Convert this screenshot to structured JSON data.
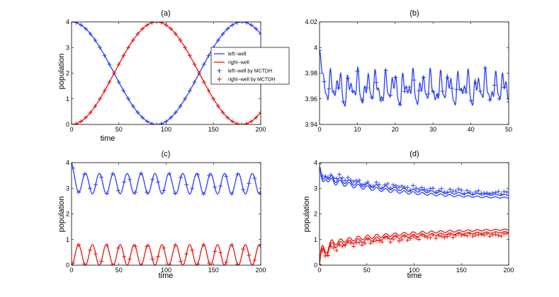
{
  "colors": {
    "left": "#2b3ff0",
    "right": "#e8140e"
  },
  "legend": {
    "labels": [
      "left−well",
      "right−well",
      "left−well by MCTDH",
      "right−well by MCTDH"
    ]
  },
  "chart_data": [
    {
      "id": "a",
      "type": "line",
      "title": "(a)",
      "xlabel": "time",
      "ylabel": "population",
      "xlim": [
        0,
        200
      ],
      "ylim": [
        0,
        4
      ],
      "xticks": [
        0,
        50,
        100,
        150,
        200
      ],
      "yticks": [
        0,
        1,
        2,
        3,
        4
      ],
      "xtick_labels": [
        "0",
        "50",
        "100",
        "150",
        "200"
      ],
      "ytick_labels": [
        "0",
        "1",
        "2",
        "3",
        "4"
      ],
      "series": [
        {
          "name": "left-well",
          "style": "line",
          "color_key": "left",
          "model": "rabi_left",
          "period": 180,
          "amp": 4
        },
        {
          "name": "right-well",
          "style": "line",
          "color_key": "right",
          "model": "rabi_right",
          "period": 180,
          "amp": 4
        },
        {
          "name": "left-well by MCTDH",
          "style": "marker",
          "color_key": "left",
          "model": "rabi_left",
          "period": 180,
          "amp": 4,
          "step": 5
        },
        {
          "name": "right-well by MCTDH",
          "style": "marker",
          "color_key": "right",
          "model": "rabi_right",
          "period": 180,
          "amp": 4,
          "step": 5
        }
      ]
    },
    {
      "id": "b",
      "type": "line",
      "title": "(b)",
      "xlabel": "",
      "ylabel": "",
      "xlim": [
        0,
        50
      ],
      "ylim": [
        3.94,
        4.02
      ],
      "xticks": [
        0,
        10,
        20,
        30,
        40,
        50
      ],
      "yticks": [
        3.94,
        3.96,
        3.98,
        4.0,
        4.02
      ],
      "xtick_labels": [
        "0",
        "10",
        "20",
        "30",
        "40",
        "50"
      ],
      "ytick_labels": [
        "3.94",
        "3.96",
        "3.98",
        "4",
        "4.02"
      ],
      "series": [
        {
          "name": "left-well",
          "style": "line",
          "color_key": "left",
          "model": "fluct",
          "mean": 3.968,
          "start": 3.998,
          "amp": 0.014
        },
        {
          "name": "left-well by MCTDH",
          "style": "marker",
          "color_key": "left",
          "model": "fluct",
          "mean": 3.968,
          "start": 3.998,
          "amp": 0.014,
          "step": 1.25
        }
      ]
    },
    {
      "id": "c",
      "type": "line",
      "title": "(c)",
      "xlabel": "time",
      "ylabel": "population",
      "xlim": [
        0,
        200
      ],
      "ylim": [
        0,
        4
      ],
      "xticks": [
        0,
        50,
        100,
        150,
        200
      ],
      "yticks": [
        0,
        1,
        2,
        3,
        4
      ],
      "xtick_labels": [
        "0",
        "50",
        "100",
        "150",
        "200"
      ],
      "ytick_labels": [
        "0",
        "1",
        "2",
        "3",
        "4"
      ],
      "series": [
        {
          "name": "left-well",
          "style": "line",
          "color_key": "left",
          "model": "osc_left",
          "period": 14.7,
          "amp": 0.8
        },
        {
          "name": "right-well",
          "style": "line",
          "color_key": "right",
          "model": "osc_right",
          "period": 14.7,
          "amp": 0.8
        },
        {
          "name": "left-well by MCTDH",
          "style": "marker",
          "color_key": "left",
          "model": "osc_left",
          "period": 14.7,
          "amp": 0.8,
          "step": 6,
          "offset": 1.5
        },
        {
          "name": "right-well by MCTDH",
          "style": "marker",
          "color_key": "right",
          "model": "osc_right",
          "period": 14.7,
          "amp": 0.8,
          "step": 6,
          "offset": 1.5
        }
      ]
    },
    {
      "id": "d",
      "type": "line",
      "title": "(d)",
      "xlabel": "time",
      "ylabel": "population",
      "xlim": [
        0,
        200
      ],
      "ylim": [
        0,
        4
      ],
      "xticks": [
        0,
        50,
        100,
        150,
        200
      ],
      "yticks": [
        0,
        1,
        2,
        3,
        4
      ],
      "xtick_labels": [
        "0",
        "50",
        "100",
        "150",
        "200"
      ],
      "ytick_labels": [
        "0",
        "1",
        "2",
        "3",
        "4"
      ],
      "series": [
        {
          "name": "left-well",
          "style": "line",
          "color_key": "left",
          "model": "decay_left",
          "shift": 0
        },
        {
          "name": "left-well (2)",
          "style": "line",
          "color_key": "left",
          "model": "decay_left",
          "shift": -0.1
        },
        {
          "name": "right-well",
          "style": "line",
          "color_key": "right",
          "model": "decay_right",
          "shift": 0
        },
        {
          "name": "right-well (2)",
          "style": "line",
          "color_key": "right",
          "model": "decay_right",
          "shift": 0.1
        },
        {
          "name": "left-well by MCTDH",
          "style": "marker",
          "color_key": "left",
          "model": "decay_left",
          "shift": 0.08,
          "step": 3
        },
        {
          "name": "right-well by MCTDH",
          "style": "marker",
          "color_key": "right",
          "model": "decay_right",
          "shift": -0.08,
          "step": 3
        }
      ]
    }
  ]
}
